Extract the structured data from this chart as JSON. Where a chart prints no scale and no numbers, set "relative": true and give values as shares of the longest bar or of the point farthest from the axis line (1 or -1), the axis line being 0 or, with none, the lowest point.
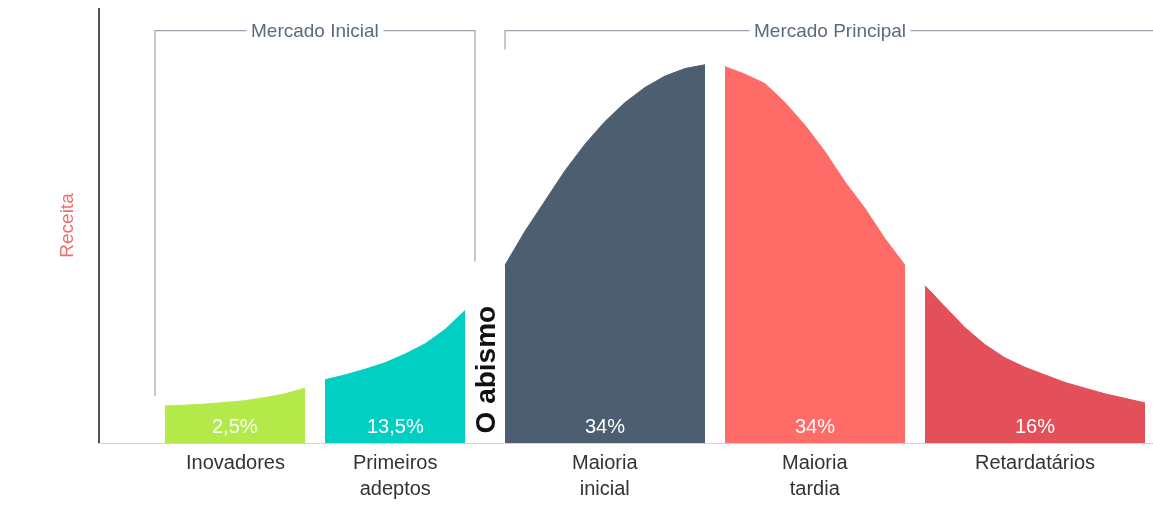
{
  "chart_data": {
    "type": "area",
    "relative": true,
    "ylabel": "Receita",
    "grid": false,
    "categories": [
      null,
      null,
      null,
      null,
      null,
      null,
      null,
      null,
      null,
      null,
      null,
      null,
      null,
      null,
      null,
      null,
      null,
      null,
      null,
      null,
      null,
      null,
      null,
      null,
      null,
      null,
      null,
      null,
      null,
      null,
      null,
      null,
      null,
      null,
      null,
      null,
      null,
      null,
      null,
      null,
      null,
      null,
      null,
      null,
      null,
      null,
      null,
      null,
      null,
      null
    ],
    "series": [
      {
        "name": "Inovadores",
        "color": "#b3ea4a",
        "values": [
          0.098,
          0.1,
          0.103,
          0.107,
          0.112,
          0.12,
          0.13,
          0.145,
          null,
          null,
          null,
          null,
          null,
          null,
          null,
          null,
          null,
          null,
          null,
          null,
          null,
          null,
          null,
          null,
          null,
          null,
          null,
          null,
          null,
          null,
          null,
          null,
          null,
          null,
          null,
          null,
          null,
          null,
          null,
          null,
          null,
          null,
          null,
          null,
          null,
          null,
          null,
          null,
          null,
          null
        ]
      },
      {
        "name": "Primeiros\nadeptos",
        "color": "#00cfc1",
        "values": [
          null,
          null,
          null,
          null,
          null,
          null,
          null,
          null,
          0.167,
          0.18,
          0.195,
          0.212,
          0.235,
          0.262,
          0.3,
          0.35,
          null,
          null,
          null,
          null,
          null,
          null,
          null,
          null,
          null,
          null,
          null,
          null,
          null,
          null,
          null,
          null,
          null,
          null,
          null,
          null,
          null,
          null,
          null,
          null,
          null,
          null,
          null,
          null,
          null,
          null,
          null,
          null,
          null,
          null
        ]
      },
      {
        "name": "Maioria\ninicial",
        "color": "#4d5e70",
        "values": [
          null,
          null,
          null,
          null,
          null,
          null,
          null,
          null,
          null,
          null,
          null,
          null,
          null,
          null,
          null,
          null,
          null,
          0.47,
          0.56,
          0.64,
          0.72,
          0.79,
          0.85,
          0.9,
          0.94,
          0.97,
          0.99,
          1,
          null,
          null,
          null,
          null,
          null,
          null,
          null,
          null,
          null,
          null,
          null,
          null,
          null,
          null,
          null,
          null,
          null,
          null,
          null,
          null,
          null,
          null
        ]
      },
      {
        "name": "Maioria\ntardia",
        "color": "#ff6b66",
        "values": [
          null,
          null,
          null,
          null,
          null,
          null,
          null,
          null,
          null,
          null,
          null,
          null,
          null,
          null,
          null,
          null,
          null,
          null,
          null,
          null,
          null,
          null,
          null,
          null,
          null,
          null,
          null,
          null,
          0.995,
          0.975,
          0.95,
          0.9,
          0.84,
          0.77,
          0.69,
          0.62,
          0.54,
          0.47,
          null,
          null,
          null,
          null,
          null,
          null,
          null,
          null,
          null,
          null,
          null,
          null
        ]
      },
      {
        "name": "Retardatários",
        "color": "#e4505a",
        "values": [
          null,
          null,
          null,
          null,
          null,
          null,
          null,
          null,
          null,
          null,
          null,
          null,
          null,
          null,
          null,
          null,
          null,
          null,
          null,
          null,
          null,
          null,
          null,
          null,
          null,
          null,
          null,
          null,
          null,
          null,
          null,
          null,
          null,
          null,
          null,
          null,
          null,
          null,
          0.416,
          0.36,
          0.305,
          0.26,
          0.225,
          0.2,
          0.18,
          0.16,
          0.145,
          0.13,
          0.118,
          0.106
        ]
      }
    ],
    "annotations": [
      "2,5%",
      "13,5%",
      "34%",
      "34%",
      "16%",
      "O abismo",
      "Mercado Inicial",
      "Mercado Principal"
    ]
  }
}
